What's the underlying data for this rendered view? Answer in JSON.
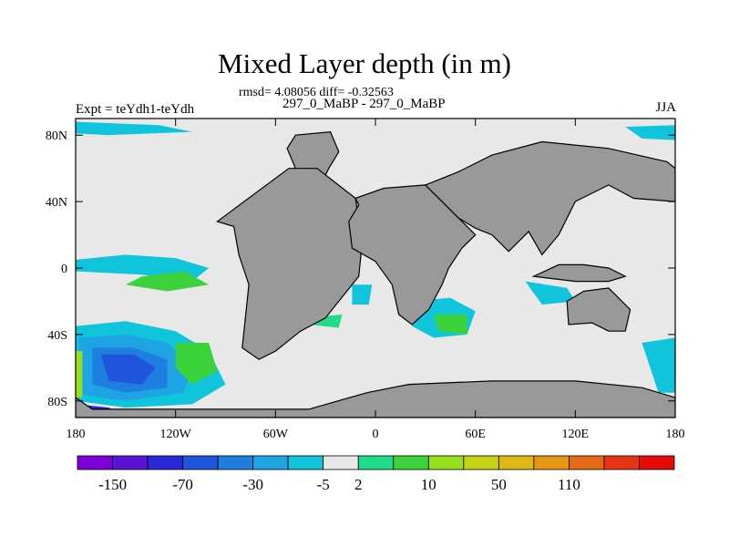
{
  "header": {
    "title": "Mixed Layer depth (in m)",
    "stats": "rmsd= 4.08056 diff= -0.32563",
    "experiment": "Expt = teYdh1-teYdh",
    "case": "297_0_MaBP - 297_0_MaBP",
    "season": "JJA"
  },
  "chart_data": {
    "type": "heatmap",
    "title": "Mixed Layer depth (in m)",
    "xlabel": "",
    "ylabel": "",
    "xlim": [
      -180,
      180
    ],
    "ylim": [
      -90,
      90
    ],
    "x_ticks": [
      {
        "value": -180,
        "label": "180"
      },
      {
        "value": -120,
        "label": "120W"
      },
      {
        "value": -60,
        "label": "60W"
      },
      {
        "value": 0,
        "label": "0"
      },
      {
        "value": 60,
        "label": "60E"
      },
      {
        "value": 120,
        "label": "120E"
      },
      {
        "value": 180,
        "label": "180"
      }
    ],
    "y_ticks": [
      {
        "value": -80,
        "label": "80S"
      },
      {
        "value": -40,
        "label": "40S"
      },
      {
        "value": 0,
        "label": "0"
      },
      {
        "value": 40,
        "label": "40N"
      },
      {
        "value": 80,
        "label": "80N"
      }
    ],
    "colorbar": {
      "colors": [
        "#7d00d8",
        "#5a14d8",
        "#2828d8",
        "#1e55dc",
        "#1f7fe0",
        "#1ea4e2",
        "#10c4dc",
        "#e8e8e8",
        "#1edc8a",
        "#3cd23c",
        "#96e01e",
        "#c8d214",
        "#dcb914",
        "#e69614",
        "#e66a14",
        "#e63414",
        "#e60a0a"
      ],
      "labels": [
        "-150",
        "-70",
        "-30",
        "-5",
        "2",
        "10",
        "50",
        "110"
      ],
      "label_boundaries": [
        1,
        3,
        5,
        7,
        8,
        10,
        12,
        14
      ]
    },
    "land_color": "#999999",
    "ocean_background": "#e8e8e8",
    "land_regions": [
      [
        [
          -48,
          80
        ],
        [
          -27,
          82
        ],
        [
          -22,
          70
        ],
        [
          -28,
          60
        ],
        [
          -34,
          48
        ],
        [
          -40,
          48
        ],
        [
          -48,
          60
        ],
        [
          -53,
          72
        ]
      ],
      [
        [
          -52,
          60
        ],
        [
          -35,
          60
        ],
        [
          -12,
          42
        ],
        [
          -8,
          15
        ],
        [
          -10,
          -5
        ],
        [
          -30,
          -30
        ],
        [
          -45,
          -38
        ],
        [
          -60,
          -50
        ],
        [
          -70,
          -55
        ],
        [
          -80,
          -48
        ],
        [
          -76,
          -10
        ],
        [
          -82,
          8
        ],
        [
          -85,
          25
        ],
        [
          -95,
          28
        ]
      ],
      [
        [
          -12,
          42
        ],
        [
          5,
          48
        ],
        [
          30,
          50
        ],
        [
          40,
          40
        ],
        [
          50,
          30
        ],
        [
          60,
          20
        ],
        [
          52,
          12
        ],
        [
          44,
          0
        ],
        [
          40,
          -10
        ],
        [
          32,
          -25
        ],
        [
          22,
          -34
        ],
        [
          14,
          -28
        ],
        [
          10,
          -10
        ],
        [
          0,
          4
        ],
        [
          -14,
          12
        ],
        [
          -16,
          28
        ],
        [
          -10,
          38
        ]
      ],
      [
        [
          30,
          50
        ],
        [
          50,
          58
        ],
        [
          70,
          68
        ],
        [
          100,
          76
        ],
        [
          140,
          72
        ],
        [
          175,
          64
        ],
        [
          180,
          60
        ],
        [
          180,
          40
        ],
        [
          155,
          42
        ],
        [
          140,
          50
        ],
        [
          120,
          40
        ],
        [
          110,
          20
        ],
        [
          100,
          8
        ],
        [
          92,
          22
        ],
        [
          80,
          10
        ],
        [
          70,
          20
        ],
        [
          60,
          24
        ],
        [
          50,
          30
        ],
        [
          40,
          40
        ]
      ],
      [
        [
          95,
          -5
        ],
        [
          120,
          -8
        ],
        [
          140,
          -8
        ],
        [
          150,
          -5
        ],
        [
          140,
          0
        ],
        [
          125,
          2
        ],
        [
          110,
          2
        ]
      ],
      [
        [
          115,
          -20
        ],
        [
          125,
          -14
        ],
        [
          140,
          -12
        ],
        [
          153,
          -25
        ],
        [
          150,
          -38
        ],
        [
          140,
          -38
        ],
        [
          130,
          -33
        ],
        [
          116,
          -34
        ]
      ],
      [
        [
          -180,
          -78
        ],
        [
          -170,
          -85
        ],
        [
          -40,
          -85
        ],
        [
          -5,
          -75
        ],
        [
          20,
          -70
        ],
        [
          70,
          -68
        ],
        [
          120,
          -68
        ],
        [
          160,
          -72
        ],
        [
          180,
          -78
        ],
        [
          180,
          -90
        ],
        [
          -180,
          -90
        ]
      ]
    ]
  }
}
